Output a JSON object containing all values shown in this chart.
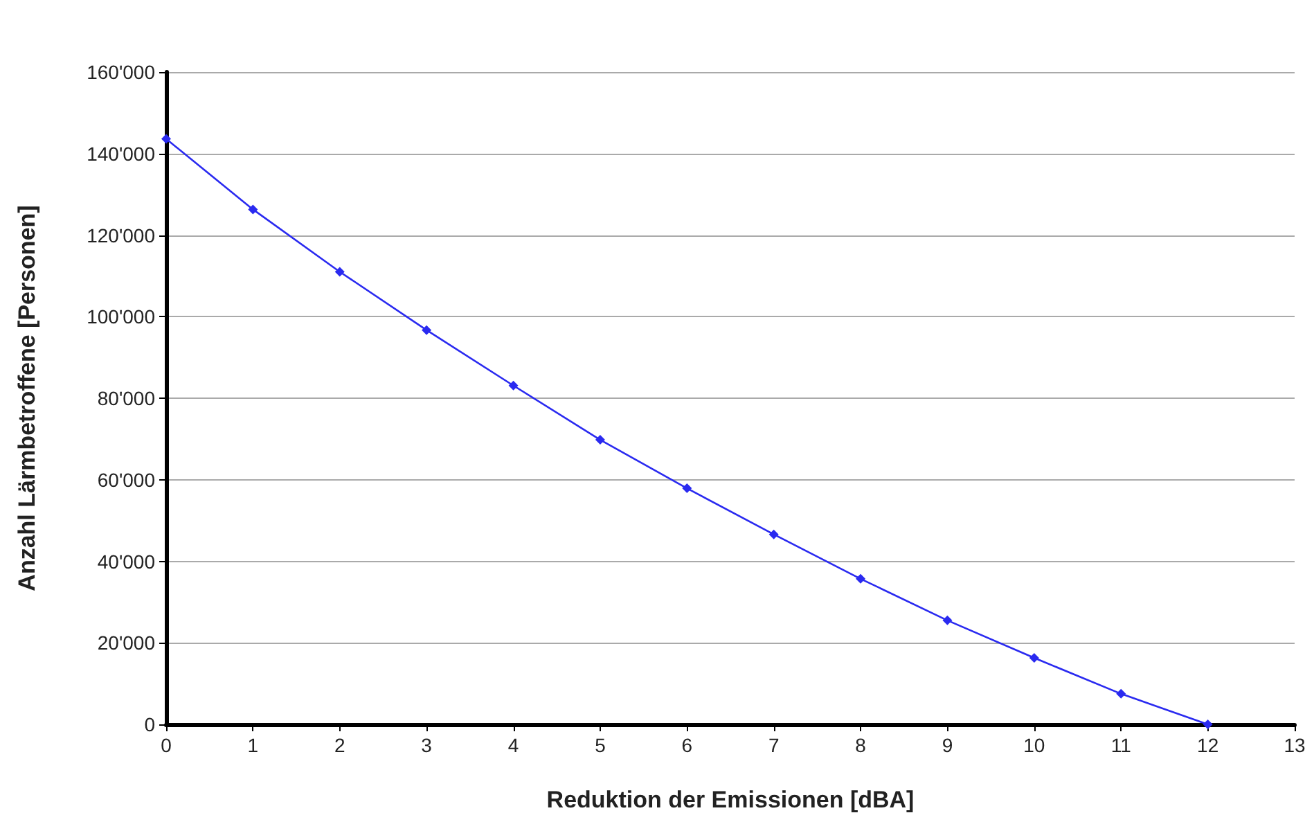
{
  "chart_data": {
    "type": "line",
    "xlabel": "Reduktion der Emissionen [dBA]",
    "ylabel": "Anzahl Lärmbetroffene [Personen]",
    "x": [
      0,
      1,
      2,
      3,
      4,
      5,
      6,
      7,
      8,
      9,
      10,
      11,
      12
    ],
    "series": [
      {
        "color": "#2a2af0",
        "values": [
          143600,
          126300,
          111000,
          96700,
          83100,
          69800,
          57900,
          46600,
          35700,
          25500,
          16300,
          7500,
          0
        ]
      }
    ],
    "xlim": [
      0,
      13
    ],
    "xticks": [
      0,
      1,
      2,
      3,
      4,
      5,
      6,
      7,
      8,
      9,
      10,
      11,
      12,
      13
    ],
    "ylim": [
      0,
      160000
    ],
    "yticks": [
      {
        "value": 0,
        "label": "0"
      },
      {
        "value": 20000,
        "label": "20'000"
      },
      {
        "value": 40000,
        "label": "40'000"
      },
      {
        "value": 60000,
        "label": "60'000"
      },
      {
        "value": 80000,
        "label": "80'000"
      },
      {
        "value": 100000,
        "label": "100'000"
      },
      {
        "value": 120000,
        "label": "120'000"
      },
      {
        "value": 140000,
        "label": "140'000"
      },
      {
        "value": 160000,
        "label": "160'000"
      }
    ],
    "grid": "y",
    "marker": "diamond",
    "line_style": "solid"
  }
}
